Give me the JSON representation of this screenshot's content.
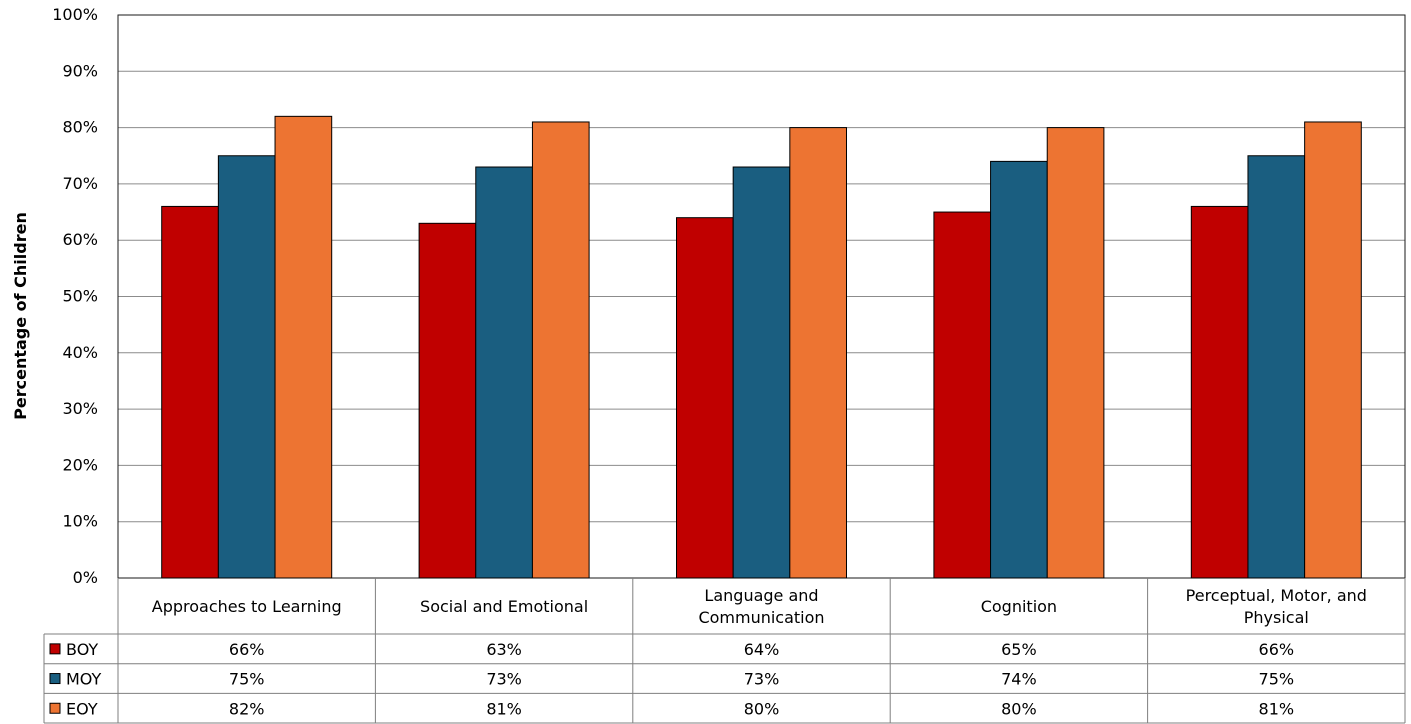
{
  "chart_data": {
    "type": "bar",
    "title": "",
    "xlabel": "",
    "ylabel": "Percentage of Children",
    "ylim": [
      0,
      100
    ],
    "yticks": [
      "0%",
      "10%",
      "20%",
      "30%",
      "40%",
      "50%",
      "60%",
      "70%",
      "80%",
      "90%",
      "100%"
    ],
    "grid": true,
    "categories": [
      [
        "Approaches to Learning"
      ],
      [
        "Social and Emotional"
      ],
      [
        "Language and",
        "Communication"
      ],
      [
        "Cognition"
      ],
      [
        "Perceptual, Motor, and",
        "Physical"
      ]
    ],
    "series": [
      {
        "name": "BOY",
        "color": "#c00000",
        "values": [
          66,
          63,
          64,
          65,
          66
        ],
        "labels": [
          "66%",
          "63%",
          "64%",
          "65%",
          "66%"
        ]
      },
      {
        "name": "MOY",
        "color": "#1a5e80",
        "values": [
          75,
          73,
          73,
          74,
          75
        ],
        "labels": [
          "75%",
          "73%",
          "73%",
          "74%",
          "75%"
        ]
      },
      {
        "name": "EOY",
        "color": "#ed7432",
        "values": [
          82,
          81,
          80,
          80,
          81
        ],
        "labels": [
          "82%",
          "81%",
          "80%",
          "80%",
          "81%"
        ]
      }
    ],
    "legend": "data-table"
  }
}
